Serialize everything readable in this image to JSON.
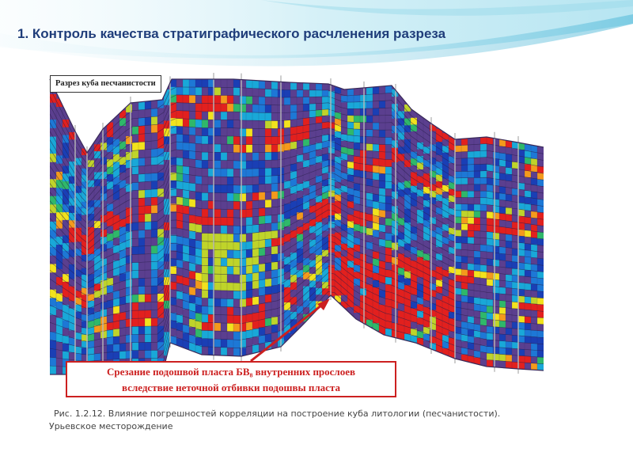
{
  "slide": {
    "title": "1. Контроль качества стратиграфического расчленения разреза"
  },
  "figure": {
    "caption_box": "Разрез куба песчанистости",
    "annotation": {
      "line1": "Срезание подошвой пласта БВ₈ внутренних прослоев",
      "line2": "вследствие неточной отбивки подошвы пласта"
    },
    "caption_line1": "Рис. 1.2.12. Влияние погрешностей корреляции на построение куба литологии (песчанистости).",
    "caption_line2": "Урьевское месторождение"
  },
  "colors": {
    "title": "#1f3d7a",
    "background_layer": "#5b3f8f",
    "annotation": "#cc2020",
    "palette": [
      "#5b3f8f",
      "#1a3fb5",
      "#1d78d6",
      "#19a8d8",
      "#2fb86a",
      "#bfd42a",
      "#f2e21d",
      "#f49a1c",
      "#e2201e"
    ]
  }
}
